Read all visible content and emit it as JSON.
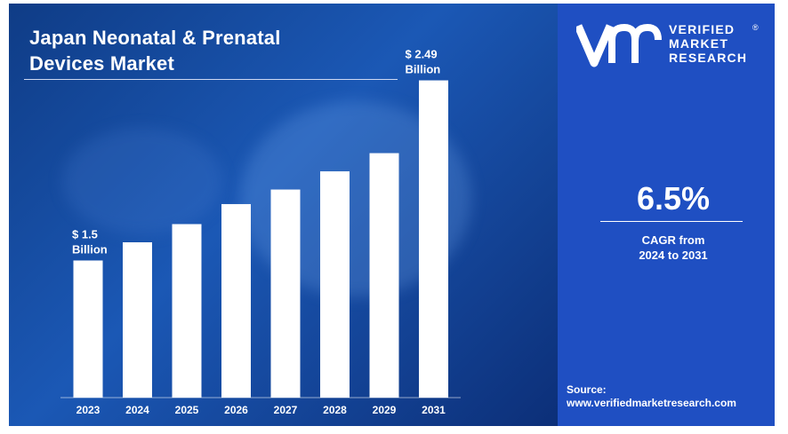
{
  "title_lines": [
    "Japan Neonatal & Prenatal",
    "Devices Market"
  ],
  "brand": {
    "lines": [
      "VERIFIED",
      "MARKET",
      "RESEARCH"
    ],
    "registered_mark": "®",
    "logo_icon": "vmr-logo-icon"
  },
  "cagr": {
    "value": "6.5%",
    "label_lines": [
      "CAGR from",
      "2024 to 2031"
    ]
  },
  "source": {
    "label": "Source:",
    "url": "www.verifiedmarketresearch.com"
  },
  "colors": {
    "panel_dark": "#0f3c86",
    "panel_accent": "#1f4fc2",
    "bar": "#ffffff",
    "text": "#ffffff"
  },
  "chart_data": {
    "type": "bar",
    "title": "Japan Neonatal & Prenatal Devices Market",
    "categories": [
      "2023",
      "2024",
      "2025",
      "2026",
      "2027",
      "2028",
      "2029",
      "2031"
    ],
    "values": [
      1.5,
      1.6,
      1.7,
      1.81,
      1.89,
      1.99,
      2.09,
      2.49
    ],
    "ylim": [
      1.0,
      2.6
    ],
    "xlabel": "",
    "ylabel": "",
    "unit": "USD Billion",
    "data_labels": [
      {
        "index": 0,
        "lines": [
          "$ 1.5",
          "Billion"
        ]
      },
      {
        "index": 7,
        "lines": [
          "$ 2.49",
          "Billion"
        ]
      }
    ],
    "grid": false,
    "legend": "none"
  }
}
